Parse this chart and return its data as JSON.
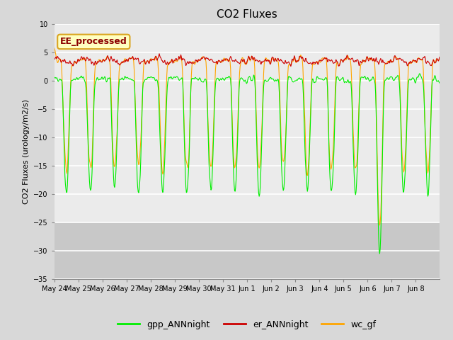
{
  "title": "CO2 Fluxes",
  "ylabel": "CO2 Fluxes (urology/m2/s)",
  "xlabel": "",
  "ylim": [
    -35,
    10
  ],
  "yticks": [
    -35,
    -30,
    -25,
    -20,
    -15,
    -10,
    -5,
    0,
    5,
    10
  ],
  "annotation_text": "EE_processed",
  "annotation_color": "#8B0000",
  "annotation_bg": "#FFFFC0",
  "annotation_border": "#DAA520",
  "bg_color": "#D8D8D8",
  "plot_bg": "#EBEBEB",
  "gpp_color": "#00EE00",
  "er_color": "#CC0000",
  "wc_color": "#FFA500",
  "title_fontsize": 11,
  "tick_fontsize": 7,
  "legend_labels": [
    "gpp_ANNnight",
    "er_ANNnight",
    "wc_gf"
  ],
  "n_days": 16,
  "pts_per_day": 48
}
